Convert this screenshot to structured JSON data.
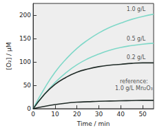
{
  "chart_data": {
    "type": "line",
    "x_label": "Time / min",
    "y_label": "[O₂] / µM",
    "xlim": [
      0,
      55
    ],
    "xticks": [
      0,
      10,
      20,
      30,
      40,
      50
    ],
    "ylim": [
      0,
      225
    ],
    "yticks": [
      0,
      50,
      100,
      150,
      200
    ],
    "grid": false,
    "x": [
      0,
      5,
      10,
      15,
      20,
      25,
      30,
      35,
      40,
      45,
      50,
      55
    ],
    "series": [
      {
        "name": "1.0 g/L",
        "color": "#7fd8c8",
        "values": [
          0,
          42,
          78,
          106,
          129,
          147,
          162,
          174,
          183,
          191,
          197,
          202
        ]
      },
      {
        "name": "0.5 g/L",
        "color": "#7fd8c8",
        "values": [
          0,
          30,
          56,
          77,
          94,
          107,
          117,
          125,
          131,
          135,
          138,
          140
        ]
      },
      {
        "name": "0.2 g/L",
        "color": "#1f2a26",
        "values": [
          0,
          30,
          52,
          67,
          78,
          85,
          90,
          93,
          95,
          97,
          98,
          98
        ]
      },
      {
        "name": "reference: 1.0 g/L Mn₂O₃",
        "color": "#1f2a26",
        "values": [
          0,
          5,
          9,
          12,
          14,
          15,
          16,
          16.5,
          17,
          17.5,
          18,
          18
        ]
      }
    ],
    "annotations": [
      {
        "text": "1.0 g/L",
        "x": 47,
        "y": 213
      },
      {
        "text": "0.5 g/L",
        "x": 47,
        "y": 150
      },
      {
        "text": "0.2 g/L",
        "x": 47,
        "y": 110
      },
      {
        "text": "reference:",
        "x": 46,
        "y": 58
      },
      {
        "text": "1.0 g/L Mn₂O₃",
        "x": 46,
        "y": 43
      }
    ]
  }
}
